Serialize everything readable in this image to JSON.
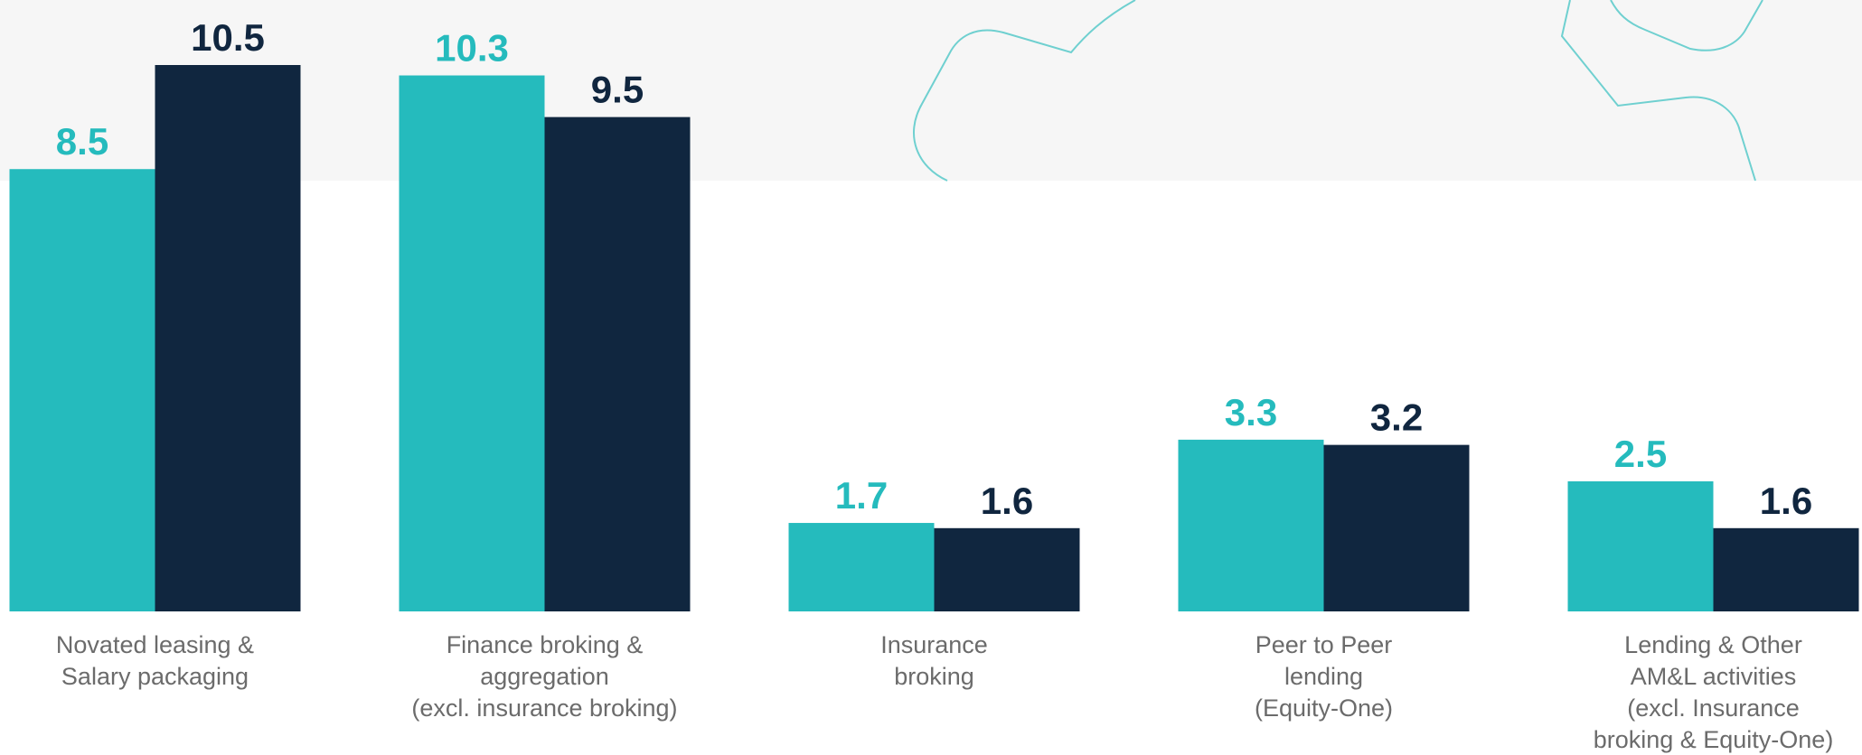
{
  "chart_data": {
    "type": "bar",
    "categories": [
      [
        "Novated leasing &",
        "Salary  packaging"
      ],
      [
        "Finance broking &",
        "aggregation",
        "(excl. insurance broking)"
      ],
      [
        "Insurance",
        "broking"
      ],
      [
        "Peer to Peer",
        "lending",
        "(Equity-One)"
      ],
      [
        "Lending & Other",
        "AM&L activities",
        "(excl. Insurance",
        "broking &  Equity-One)"
      ]
    ],
    "series": [
      {
        "color": "#25bbbd",
        "values": [
          8.5,
          10.3,
          1.7,
          3.3,
          2.5
        ]
      },
      {
        "color": "#10263f",
        "values": [
          10.5,
          9.5,
          1.6,
          3.2,
          1.6
        ]
      }
    ],
    "ylim": [
      0,
      10.5
    ]
  }
}
